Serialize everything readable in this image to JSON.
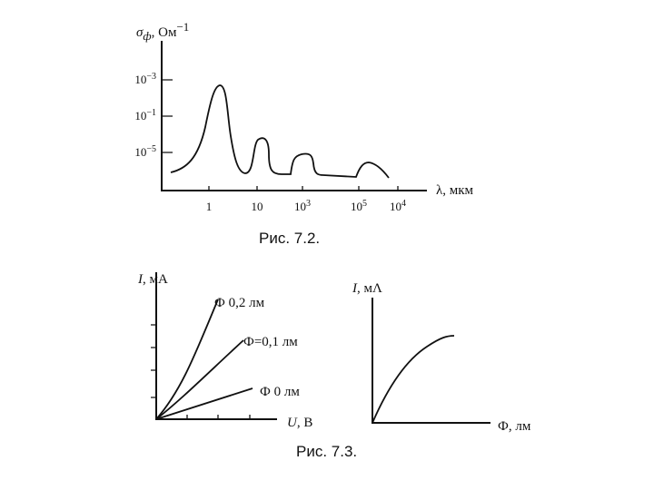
{
  "fig1": {
    "y_label": {
      "symbol": "σ",
      "sub": "ф",
      "unit": ", Ом",
      "sup": "−1"
    },
    "y_ticks": [
      {
        "base": "10",
        "exp": "−3"
      },
      {
        "base": "10",
        "exp": "−1"
      },
      {
        "base": "10",
        "exp": "−5"
      }
    ],
    "x_ticks": [
      {
        "base": "1"
      },
      {
        "base": "10"
      },
      {
        "base": "10",
        "exp": "3"
      },
      {
        "base": "10",
        "exp": "5"
      },
      {
        "base": "10",
        "exp": "4"
      }
    ],
    "x_label": "λ, мкм",
    "caption": "Рис. 7.2."
  },
  "fig2": {
    "left": {
      "y_label": {
        "symbol": "I",
        "unit": ", мА"
      },
      "x_label": {
        "symbol": "U",
        "unit": ", В"
      },
      "curve_labels": [
        "Ф  0,2 лм",
        "Ф=0,1 лм",
        "Ф  0 лм"
      ]
    },
    "right": {
      "y_label": {
        "symbol": "I",
        "unit": ", мΛ"
      },
      "x_label": "Ф, лм"
    },
    "caption": "Рис. 7.3."
  }
}
